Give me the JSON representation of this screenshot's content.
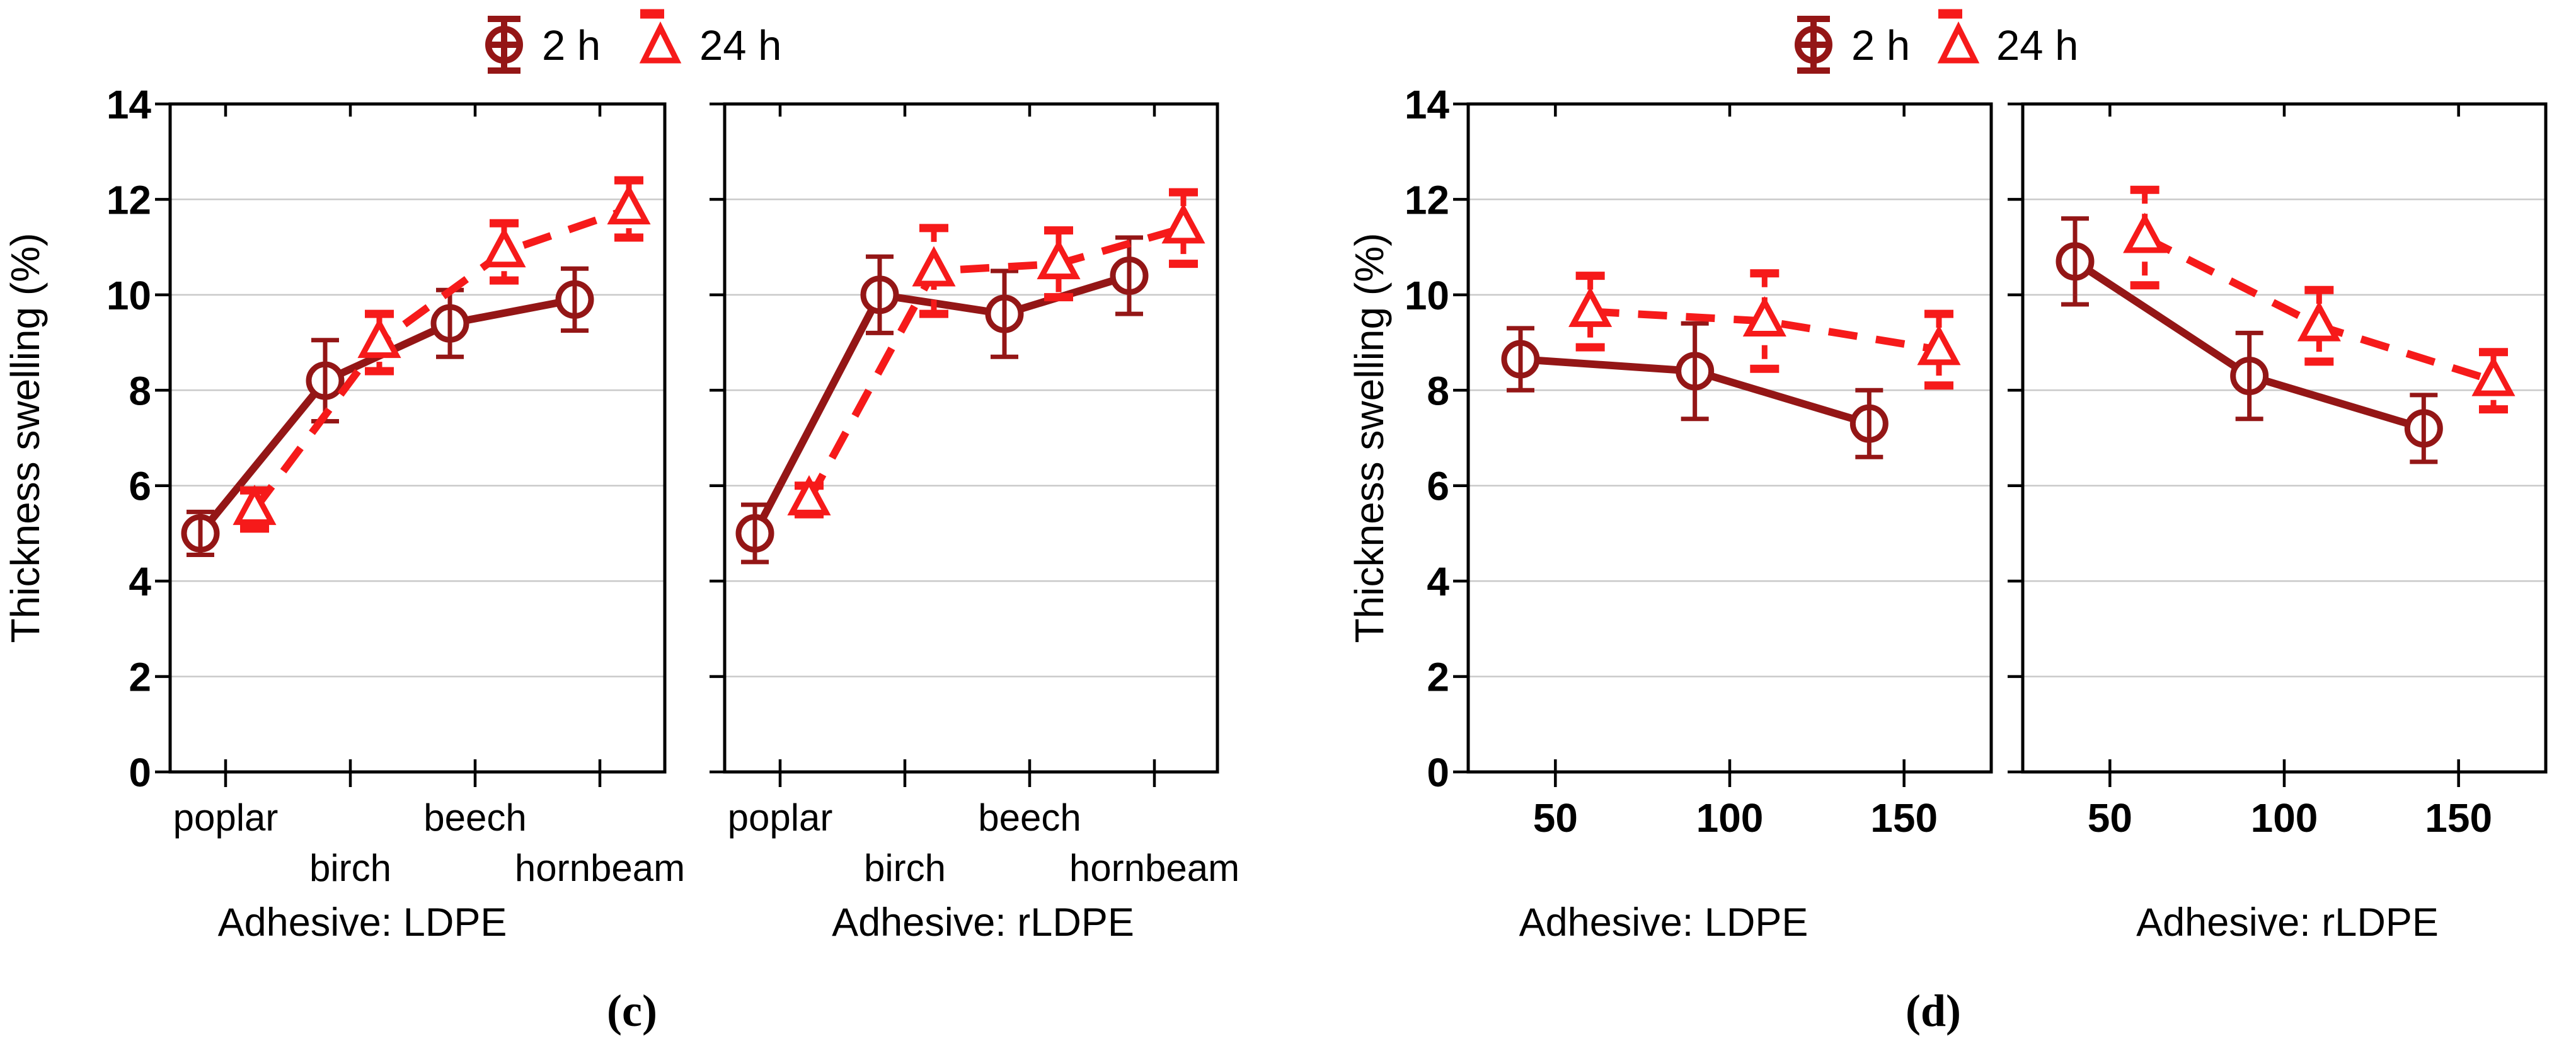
{
  "figure": {
    "ylabel": "Thickness swelling (%)",
    "ylim": [
      0,
      14
    ],
    "yticks": [
      0,
      2,
      4,
      6,
      8,
      10,
      12,
      14
    ],
    "legend": {
      "items": [
        {
          "label": "2 h"
        },
        {
          "label": "24 h"
        }
      ]
    },
    "captions": {
      "left": "(c)",
      "right": "(d)"
    },
    "colors": {
      "series_2h": "#941616",
      "series_24h": "#f61a1a",
      "grid": "#c9c9c9",
      "axis": "#000000",
      "text": "#000000"
    }
  },
  "chart_data": [
    {
      "type": "line",
      "panel": "c-left",
      "title": "Adhesive: LDPE",
      "x_type": "category",
      "categories": [
        "poplar",
        "birch",
        "beech",
        "hornbeam"
      ],
      "ylabel": "Thickness swelling (%)",
      "ylim": [
        0,
        14
      ],
      "grid": "horizontal",
      "legend_position": "top",
      "series": [
        {
          "name": "2 h",
          "marker": "circle",
          "line": "solid",
          "color": "#941616",
          "values": [
            5.0,
            8.2,
            9.4,
            9.9
          ],
          "err": [
            0.45,
            0.85,
            0.7,
            0.65
          ]
        },
        {
          "name": "24 h",
          "marker": "triangle",
          "line": "dashed",
          "color": "#f61a1a",
          "values": [
            5.5,
            9.0,
            10.9,
            11.8
          ],
          "err": [
            0.4,
            0.6,
            0.6,
            0.6
          ]
        }
      ]
    },
    {
      "type": "line",
      "panel": "c-right",
      "title": "Adhesive: rLDPE",
      "x_type": "category",
      "categories": [
        "poplar",
        "birch",
        "beech",
        "hornbeam"
      ],
      "ylim": [
        0,
        14
      ],
      "grid": "horizontal",
      "series": [
        {
          "name": "2 h",
          "marker": "circle",
          "line": "solid",
          "color": "#941616",
          "values": [
            5.0,
            10.0,
            9.6,
            10.4
          ],
          "err": [
            0.6,
            0.8,
            0.9,
            0.8
          ]
        },
        {
          "name": "24 h",
          "marker": "triangle",
          "line": "dashed",
          "color": "#f61a1a",
          "values": [
            5.7,
            10.5,
            10.65,
            11.4
          ],
          "err": [
            0.3,
            0.9,
            0.7,
            0.75
          ]
        }
      ]
    },
    {
      "type": "line",
      "panel": "d-left",
      "title": "Adhesive: LDPE",
      "x_type": "numeric",
      "xticks": [
        50,
        100,
        150
      ],
      "xlim": [
        25,
        175
      ],
      "ylim": [
        0,
        14
      ],
      "grid": "horizontal",
      "series": [
        {
          "name": "2 h",
          "marker": "circle",
          "line": "solid",
          "color": "#941616",
          "x": [
            40,
            90,
            140
          ],
          "values": [
            8.65,
            8.4,
            7.3
          ],
          "err": [
            0.65,
            1.0,
            0.7
          ]
        },
        {
          "name": "24 h",
          "marker": "triangle",
          "line": "dashed",
          "color": "#f61a1a",
          "x": [
            60,
            110,
            160
          ],
          "values": [
            9.65,
            9.45,
            8.85
          ],
          "err": [
            0.75,
            1.0,
            0.75
          ]
        }
      ]
    },
    {
      "type": "line",
      "panel": "d-right",
      "title": "Adhesive: rLDPE",
      "x_type": "numeric",
      "xticks": [
        50,
        100,
        150
      ],
      "xlim": [
        25,
        175
      ],
      "ylim": [
        0,
        14
      ],
      "grid": "horizontal",
      "series": [
        {
          "name": "2 h",
          "marker": "circle",
          "line": "solid",
          "color": "#941616",
          "x": [
            40,
            90,
            140
          ],
          "values": [
            10.7,
            8.3,
            7.2
          ],
          "err": [
            0.9,
            0.9,
            0.7
          ]
        },
        {
          "name": "24 h",
          "marker": "triangle",
          "line": "dashed",
          "color": "#f61a1a",
          "x": [
            60,
            110,
            160
          ],
          "values": [
            11.2,
            9.35,
            8.2
          ],
          "err": [
            1.0,
            0.75,
            0.6
          ]
        }
      ]
    }
  ]
}
